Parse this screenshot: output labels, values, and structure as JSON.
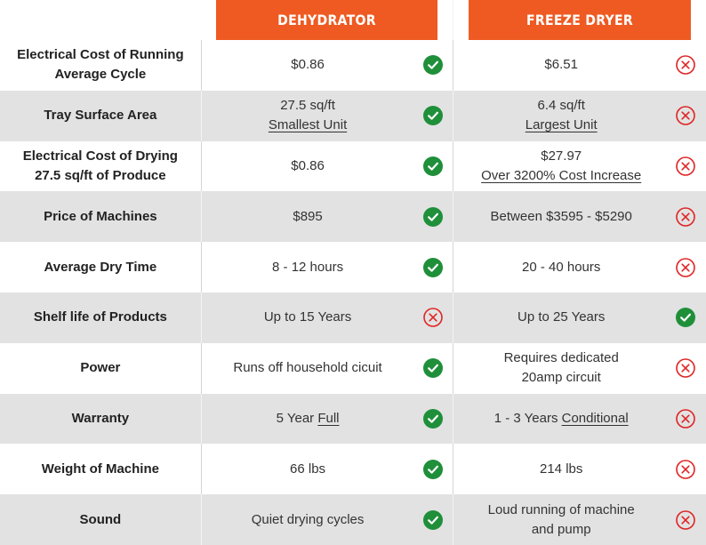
{
  "header": {
    "dehydrator": "DEHYDRATOR",
    "freeze_dryer": "FREEZE DRYER"
  },
  "colors": {
    "accent": "#ee5a22",
    "check": "#1f8f3a",
    "cross": "#e02424",
    "stripe": "#e2e2e2"
  },
  "rows": [
    {
      "label": [
        "Electrical Cost of Running",
        "Average Cycle"
      ],
      "dehydrator": {
        "lines": [
          "$0.86"
        ],
        "underline": [
          false
        ],
        "icon": "check-icon"
      },
      "freeze": {
        "lines": [
          "$6.51"
        ],
        "underline": [
          false
        ],
        "icon": "cross-icon"
      }
    },
    {
      "label": [
        "Tray Surface Area"
      ],
      "dehydrator": {
        "lines": [
          "27.5 sq/ft",
          "Smallest Unit"
        ],
        "underline": [
          false,
          true
        ],
        "icon": "check-icon"
      },
      "freeze": {
        "lines": [
          "6.4 sq/ft",
          "Largest Unit"
        ],
        "underline": [
          false,
          true
        ],
        "icon": "cross-icon"
      }
    },
    {
      "label": [
        "Electrical Cost of Drying",
        "27.5 sq/ft of Produce"
      ],
      "dehydrator": {
        "lines": [
          "$0.86"
        ],
        "underline": [
          false
        ],
        "icon": "check-icon"
      },
      "freeze": {
        "lines": [
          "$27.97",
          "Over 3200% Cost Increase"
        ],
        "underline": [
          false,
          true
        ],
        "icon": "cross-icon"
      }
    },
    {
      "label": [
        "Price of Machines"
      ],
      "dehydrator": {
        "lines": [
          "$895"
        ],
        "underline": [
          false
        ],
        "icon": "check-icon"
      },
      "freeze": {
        "lines": [
          "Between $3595 - $5290"
        ],
        "underline": [
          false
        ],
        "icon": "cross-icon"
      }
    },
    {
      "label": [
        "Average Dry Time"
      ],
      "dehydrator": {
        "lines": [
          "8 - 12 hours"
        ],
        "underline": [
          false
        ],
        "icon": "check-icon"
      },
      "freeze": {
        "lines": [
          "20 - 40 hours"
        ],
        "underline": [
          false
        ],
        "icon": "cross-icon"
      }
    },
    {
      "label": [
        "Shelf life of Products"
      ],
      "dehydrator": {
        "lines": [
          "Up to 15 Years"
        ],
        "underline": [
          false
        ],
        "icon": "cross-icon"
      },
      "freeze": {
        "lines": [
          "Up to 25 Years"
        ],
        "underline": [
          false
        ],
        "icon": "check-icon"
      }
    },
    {
      "label": [
        "Power"
      ],
      "dehydrator": {
        "lines": [
          "Runs off household cicuit"
        ],
        "underline": [
          false
        ],
        "icon": "check-icon"
      },
      "freeze": {
        "lines": [
          "Requires dedicated",
          "20amp circuit"
        ],
        "underline": [
          false,
          false
        ],
        "icon": "cross-icon"
      }
    },
    {
      "label": [
        "Warranty"
      ],
      "dehydrator": {
        "lines": [
          [
            "5 Year ",
            "Full"
          ]
        ],
        "underline": [
          [
            false,
            true
          ]
        ],
        "icon": "check-icon"
      },
      "freeze": {
        "lines": [
          [
            "1 - 3 Years ",
            "Conditional"
          ]
        ],
        "underline": [
          [
            false,
            true
          ]
        ],
        "icon": "cross-icon"
      }
    },
    {
      "label": [
        "Weight of Machine"
      ],
      "dehydrator": {
        "lines": [
          "66 lbs"
        ],
        "underline": [
          false
        ],
        "icon": "check-icon"
      },
      "freeze": {
        "lines": [
          "214 lbs"
        ],
        "underline": [
          false
        ],
        "icon": "cross-icon"
      }
    },
    {
      "label": [
        "Sound"
      ],
      "dehydrator": {
        "lines": [
          "Quiet drying cycles"
        ],
        "underline": [
          false
        ],
        "icon": "check-icon"
      },
      "freeze": {
        "lines": [
          "Loud running of machine",
          "and pump"
        ],
        "underline": [
          false,
          false
        ],
        "icon": "cross-icon"
      }
    }
  ]
}
